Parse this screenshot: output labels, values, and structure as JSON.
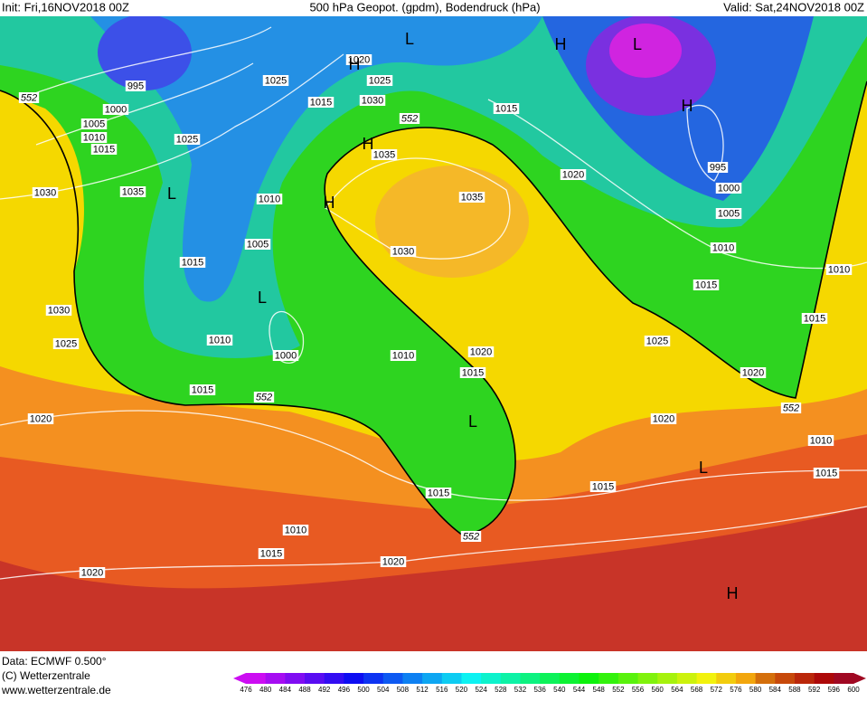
{
  "header": {
    "init": "Init: Fri,16NOV2018 00Z",
    "title": "500 hPa Geopot. (gpdm), Bodendruck (hPa)",
    "valid": "Valid: Sat,24NOV2018 00Z"
  },
  "map": {
    "isobar_labels": [
      995,
      1000,
      1005,
      1010,
      1015,
      1025,
      1020,
      1025,
      1015,
      1030,
      1025,
      1035,
      1030,
      1035,
      1010,
      1035,
      1005,
      1030,
      1015,
      1030,
      1025,
      1010,
      1000,
      1010,
      1020,
      1015,
      1015,
      1020,
      1015,
      1020,
      995,
      1000,
      1005,
      1010,
      1015,
      1010,
      1015,
      1025,
      1020,
      1020,
      1010,
      1015,
      1015,
      1015,
      1010,
      1015,
      1020,
      1020
    ],
    "height_labels": [
      552,
      552,
      552,
      552,
      552
    ],
    "centers": [
      "L",
      "H",
      "L",
      "H",
      "H",
      "H",
      "H",
      "L",
      "L",
      "L",
      "L",
      "H"
    ]
  },
  "footer": {
    "data": "Data: ECMWF   0.500°",
    "copyright": "(C) Wetterzentrale",
    "url": "www.wetterzentrale.de",
    "scale": [
      476,
      480,
      484,
      488,
      492,
      496,
      500,
      504,
      508,
      512,
      516,
      520,
      524,
      528,
      532,
      536,
      540,
      544,
      548,
      552,
      556,
      560,
      564,
      568,
      572,
      576,
      580,
      584,
      588,
      592,
      596,
      600
    ]
  }
}
